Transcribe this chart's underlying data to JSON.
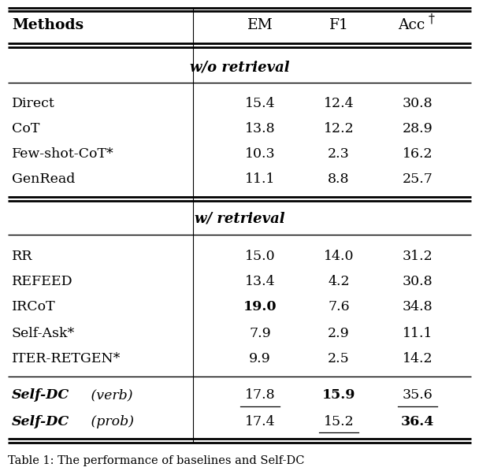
{
  "col_headers": [
    "Methods",
    "EM",
    "F1",
    "Acc†"
  ],
  "section1_label": "w/o retrieval",
  "section2_label": "w/ retrieval",
  "section1_rows": [
    {
      "method": "Direct",
      "em": "15.4",
      "f1": "12.4",
      "acc": "30.8",
      "em_bold": false,
      "f1_bold": false,
      "acc_bold": false,
      "em_ul": false,
      "f1_ul": false,
      "acc_ul": false,
      "method_bold": false,
      "method_italic": false
    },
    {
      "method": "CoT",
      "em": "13.8",
      "f1": "12.2",
      "acc": "28.9",
      "em_bold": false,
      "f1_bold": false,
      "acc_bold": false,
      "em_ul": false,
      "f1_ul": false,
      "acc_ul": false,
      "method_bold": false,
      "method_italic": false
    },
    {
      "method": "Few-shot-CoT*",
      "em": "10.3",
      "f1": "2.3",
      "acc": "16.2",
      "em_bold": false,
      "f1_bold": false,
      "acc_bold": false,
      "em_ul": false,
      "f1_ul": false,
      "acc_ul": false,
      "method_bold": false,
      "method_italic": false
    },
    {
      "method": "GenRead",
      "em": "11.1",
      "f1": "8.8",
      "acc": "25.7",
      "em_bold": false,
      "f1_bold": false,
      "acc_bold": false,
      "em_ul": false,
      "f1_ul": false,
      "acc_ul": false,
      "method_bold": false,
      "method_italic": false
    }
  ],
  "section2_rows": [
    {
      "method": "RR",
      "em": "15.0",
      "f1": "14.0",
      "acc": "31.2",
      "em_bold": false,
      "f1_bold": false,
      "acc_bold": false,
      "em_ul": false,
      "f1_ul": false,
      "acc_ul": false,
      "method_bold": false,
      "method_italic": false
    },
    {
      "method": "REFEED",
      "em": "13.4",
      "f1": "4.2",
      "acc": "30.8",
      "em_bold": false,
      "f1_bold": false,
      "acc_bold": false,
      "em_ul": false,
      "f1_ul": false,
      "acc_ul": false,
      "method_bold": false,
      "method_italic": false
    },
    {
      "method": "IRCoT",
      "em": "19.0",
      "f1": "7.6",
      "acc": "34.8",
      "em_bold": true,
      "f1_bold": false,
      "acc_bold": false,
      "em_ul": false,
      "f1_ul": false,
      "acc_ul": false,
      "method_bold": false,
      "method_italic": false
    },
    {
      "method": "Self-Ask*",
      "em": "7.9",
      "f1": "2.9",
      "acc": "11.1",
      "em_bold": false,
      "f1_bold": false,
      "acc_bold": false,
      "em_ul": false,
      "f1_ul": false,
      "acc_ul": false,
      "method_bold": false,
      "method_italic": false
    },
    {
      "method": "ITER-RETGEN*",
      "em": "9.9",
      "f1": "2.5",
      "acc": "14.2",
      "em_bold": false,
      "f1_bold": false,
      "acc_bold": false,
      "em_ul": false,
      "f1_ul": false,
      "acc_ul": false,
      "method_bold": false,
      "method_italic": false
    }
  ],
  "selfdc_rows": [
    {
      "method_bold": "Self-DC",
      "method_italic": " (verb)",
      "em": "17.8",
      "f1": "15.9",
      "acc": "35.6",
      "em_bold": false,
      "f1_bold": true,
      "acc_bold": false,
      "em_ul": true,
      "f1_ul": false,
      "acc_ul": true
    },
    {
      "method_bold": "Self-DC",
      "method_italic": " (prob)",
      "em": "17.4",
      "f1": "15.2",
      "acc": "36.4",
      "em_bold": false,
      "f1_bold": false,
      "acc_bold": true,
      "em_ul": false,
      "f1_ul": true,
      "acc_ul": false
    }
  ],
  "caption": "Table 1: The performance of baselines and Self-DC",
  "bg_color": "#ffffff",
  "text_color": "#000000",
  "font_size": 12.5,
  "header_font_size": 13.5,
  "section_font_size": 13.0,
  "caption_font_size": 10.5
}
